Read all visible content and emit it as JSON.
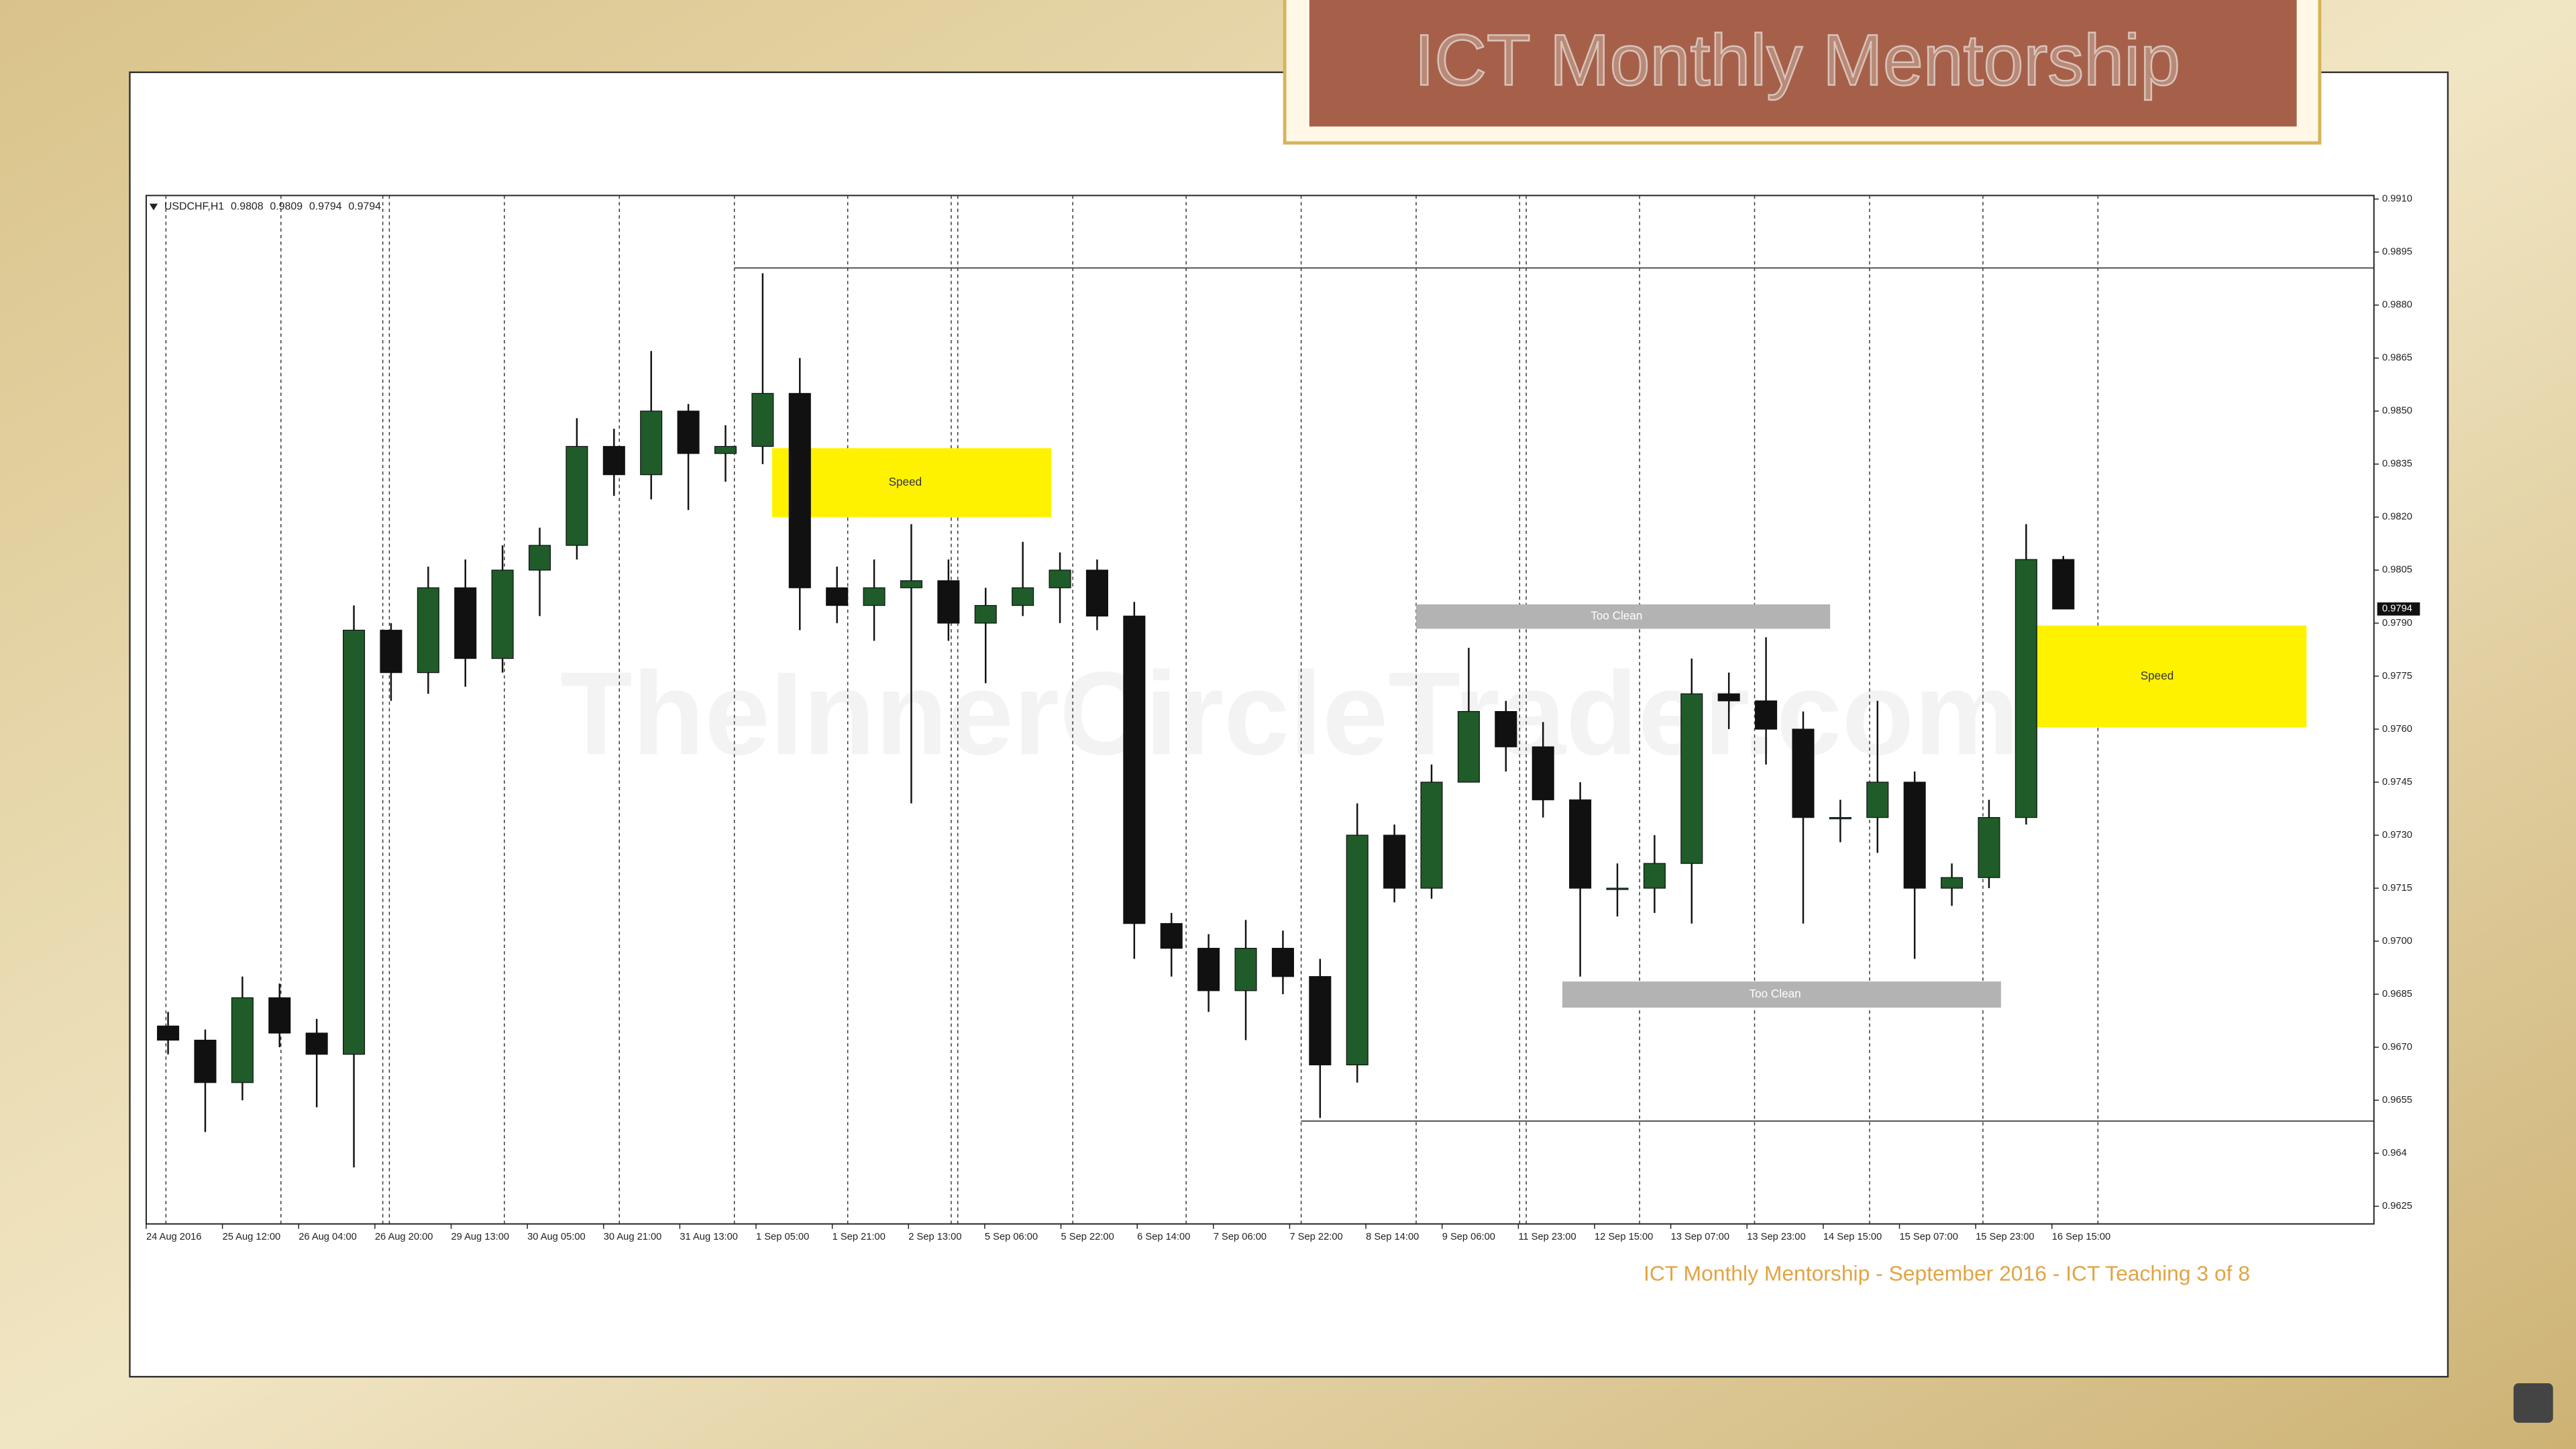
{
  "chart_data": {
    "type": "candlestick",
    "title": "ICT Monthly Mentorship",
    "symbol": "USDCHF,H1",
    "watermark": "TheInnerCircleTrader.com",
    "footer": "ICT Monthly Mentorship - September 2016 - ICT Teaching  3 of 8",
    "x_labels": [
      "24 Aug 2016",
      "25 Aug 12:00",
      "26 Aug 04:00",
      "26 Aug 20:00",
      "29 Aug 13:00",
      "30 Aug 05:00",
      "30 Aug 21:00",
      "31 Aug 13:00",
      "1 Sep 05:00",
      "1 Sep 21:00",
      "2 Sep 13:00",
      "5 Sep 06:00",
      "5 Sep 22:00",
      "6 Sep 14:00",
      "7 Sep 06:00",
      "7 Sep 22:00",
      "8 Sep 14:00",
      "9 Sep 06:00",
      "11 Sep 23:00",
      "12 Sep 15:00",
      "13 Sep 07:00",
      "13 Sep 23:00",
      "14 Sep 15:00",
      "15 Sep 07:00",
      "15 Sep 23:00",
      "16 Sep 15:00"
    ],
    "open": [
      0.9676,
      0.9672,
      0.966,
      0.9684,
      0.9674,
      0.9668,
      0.9788,
      0.9776,
      0.98,
      0.978,
      0.9805,
      0.9812,
      0.984,
      0.9832,
      0.985,
      0.9838,
      0.984,
      0.9855,
      0.98,
      0.9795,
      0.98,
      0.9802,
      0.979,
      0.9795,
      0.98,
      0.9805,
      0.9792,
      0.9705,
      0.9698,
      0.9686,
      0.9698,
      0.969,
      0.9665,
      0.973,
      0.9715,
      0.9745,
      0.9765,
      0.9755,
      0.974,
      0.9715,
      0.9715,
      0.9722,
      0.977,
      0.9768,
      0.976,
      0.9735,
      0.9735,
      0.9745,
      0.9715,
      0.9718,
      0.9735,
      0.9808
    ],
    "high": [
      0.968,
      0.9675,
      0.969,
      0.9688,
      0.9678,
      0.9795,
      0.979,
      0.9806,
      0.9808,
      0.9812,
      0.9817,
      0.9848,
      0.9845,
      0.9867,
      0.9852,
      0.9846,
      0.9889,
      0.9865,
      0.9806,
      0.9808,
      0.9818,
      0.9808,
      0.98,
      0.9813,
      0.981,
      0.9808,
      0.9796,
      0.9708,
      0.9702,
      0.9706,
      0.9703,
      0.9695,
      0.9739,
      0.9733,
      0.975,
      0.9783,
      0.9768,
      0.9762,
      0.9745,
      0.9722,
      0.973,
      0.978,
      0.9776,
      0.9786,
      0.9765,
      0.974,
      0.9768,
      0.9748,
      0.9722,
      0.974,
      0.9818,
      0.9809
    ],
    "low": [
      0.9668,
      0.9646,
      0.9655,
      0.967,
      0.9653,
      0.9636,
      0.9768,
      0.977,
      0.9772,
      0.9776,
      0.9792,
      0.9808,
      0.9826,
      0.9825,
      0.9822,
      0.983,
      0.9835,
      0.9788,
      0.979,
      0.9785,
      0.9739,
      0.9785,
      0.9773,
      0.9792,
      0.979,
      0.9788,
      0.9695,
      0.969,
      0.968,
      0.9672,
      0.9685,
      0.965,
      0.966,
      0.9711,
      0.9712,
      0.9745,
      0.9748,
      0.9735,
      0.969,
      0.9707,
      0.9708,
      0.9705,
      0.976,
      0.975,
      0.9705,
      0.9728,
      0.9725,
      0.9695,
      0.971,
      0.9715,
      0.9733,
      0.9794
    ],
    "close": [
      0.9672,
      0.966,
      0.9684,
      0.9674,
      0.9668,
      0.9788,
      0.9776,
      0.98,
      0.978,
      0.9805,
      0.9812,
      0.984,
      0.9832,
      0.985,
      0.9838,
      0.984,
      0.9855,
      0.98,
      0.9795,
      0.98,
      0.9802,
      0.979,
      0.9795,
      0.98,
      0.9805,
      0.9792,
      0.9705,
      0.9698,
      0.9686,
      0.9698,
      0.969,
      0.9665,
      0.973,
      0.9715,
      0.9745,
      0.9765,
      0.9755,
      0.974,
      0.9715,
      0.9715,
      0.9722,
      0.977,
      0.9768,
      0.976,
      0.9735,
      0.9735,
      0.9745,
      0.9715,
      0.9718,
      0.9735,
      0.9808,
      0.9794
    ],
    "up_color": "#1f5c2a",
    "down_color": "#111111",
    "ylim": [
      0.962,
      0.9911
    ],
    "yticks": [
      0.9625,
      0.964,
      0.9655,
      {
        "value": 0.967,
        "label": "0.9670"
      },
      0.9685,
      {
        "value": 0.97,
        "label": "0.9700"
      },
      0.9715,
      {
        "value": 0.973,
        "label": "0.9730"
      },
      0.9745,
      {
        "value": 0.976,
        "label": "0.9760"
      },
      0.9775,
      {
        "value": 0.979,
        "label": "0.9790"
      },
      0.9805,
      {
        "value": 0.982,
        "label": "0.9820"
      },
      0.9835,
      {
        "value": 0.985,
        "label": "0.9850"
      },
      0.9865,
      {
        "value": 0.988,
        "label": "0.9880"
      },
      0.9895,
      {
        "value": 0.991,
        "label": "0.9910"
      }
    ],
    "levels": [
      0.98905,
      0.96491
    ],
    "zones": [
      {
        "text": "Speed",
        "y": [
          0.982,
          0.98395
        ],
        "color": "#fff200"
      },
      {
        "text": "Too Clean",
        "y": [
          0.97884,
          0.97953
        ],
        "color": "#b3b3b3"
      },
      {
        "text": "Too Clean",
        "y": [
          0.96812,
          0.96886
        ],
        "color": "#b3b3b3"
      },
      {
        "text": "Speed",
        "y": [
          0.97605,
          0.97893
        ],
        "color": "#fff200"
      }
    ]
  }
}
